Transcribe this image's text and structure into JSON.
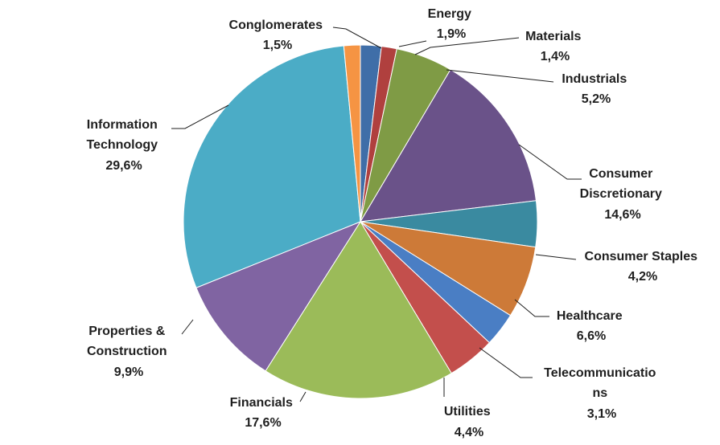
{
  "chart_data": {
    "type": "pie",
    "start_angle_deg": 0,
    "direction": "clockwise",
    "slices": [
      {
        "label": "Energy",
        "value": 1.9,
        "value_text": "1,9%",
        "color": "#3f6ea8"
      },
      {
        "label": "Materials",
        "value": 1.4,
        "value_text": "1,4%",
        "color": "#b0403e"
      },
      {
        "label": "Industrials",
        "value": 5.2,
        "value_text": "5,2%",
        "color": "#7f9b45"
      },
      {
        "label": "Consumer Discretionary",
        "value": 14.6,
        "value_text": "14,6%",
        "color": "#6a5289"
      },
      {
        "label": "Consumer Staples",
        "value": 4.2,
        "value_text": "4,2%",
        "color": "#3a8aa0"
      },
      {
        "label": "Healthcare",
        "value": 6.6,
        "value_text": "6,6%",
        "color": "#cd7a38"
      },
      {
        "label": "Telecommunications",
        "value": 3.1,
        "value_text": "3,1%",
        "color": "#4a7ec4"
      },
      {
        "label": "Utilities",
        "value": 4.4,
        "value_text": "4,4%",
        "color": "#c34f4c"
      },
      {
        "label": "Financials",
        "value": 17.6,
        "value_text": "17,6%",
        "color": "#9bbb59"
      },
      {
        "label": "Properties & Construction",
        "value": 9.9,
        "value_text": "9,9%",
        "color": "#8064a2"
      },
      {
        "label": "Information Technology",
        "value": 29.6,
        "value_text": "29,6%",
        "color": "#4bacc6"
      },
      {
        "label": "Conglomerates",
        "value": 1.5,
        "value_text": "1,5%",
        "color": "#f59443"
      }
    ]
  },
  "labels": {
    "energy": {
      "name": "Energy",
      "pct": "1,9%"
    },
    "materials": {
      "name": "Materials",
      "pct": "1,4%"
    },
    "industrials": {
      "name": "Industrials",
      "pct": "5,2%"
    },
    "consumer_discretionary": {
      "line1": "Consumer",
      "line2": "Discretionary",
      "pct": "14,6%"
    },
    "consumer_staples": {
      "name": "Consumer Staples",
      "pct": "4,2%"
    },
    "healthcare": {
      "name": "Healthcare",
      "pct": "6,6%"
    },
    "telecommunications": {
      "line1": "Telecommunicatio",
      "line2": "ns",
      "pct": "3,1%"
    },
    "utilities": {
      "name": "Utilities",
      "pct": "4,4%"
    },
    "financials": {
      "name": "Financials",
      "pct": "17,6%"
    },
    "properties": {
      "line1": "Properties &",
      "line2": "Construction",
      "pct": "9,9%"
    },
    "information_technology": {
      "line1": "Information",
      "line2": "Technology",
      "pct": "29,6%"
    },
    "conglomerates": {
      "name": "Conglomerates",
      "pct": "1,5%"
    }
  }
}
